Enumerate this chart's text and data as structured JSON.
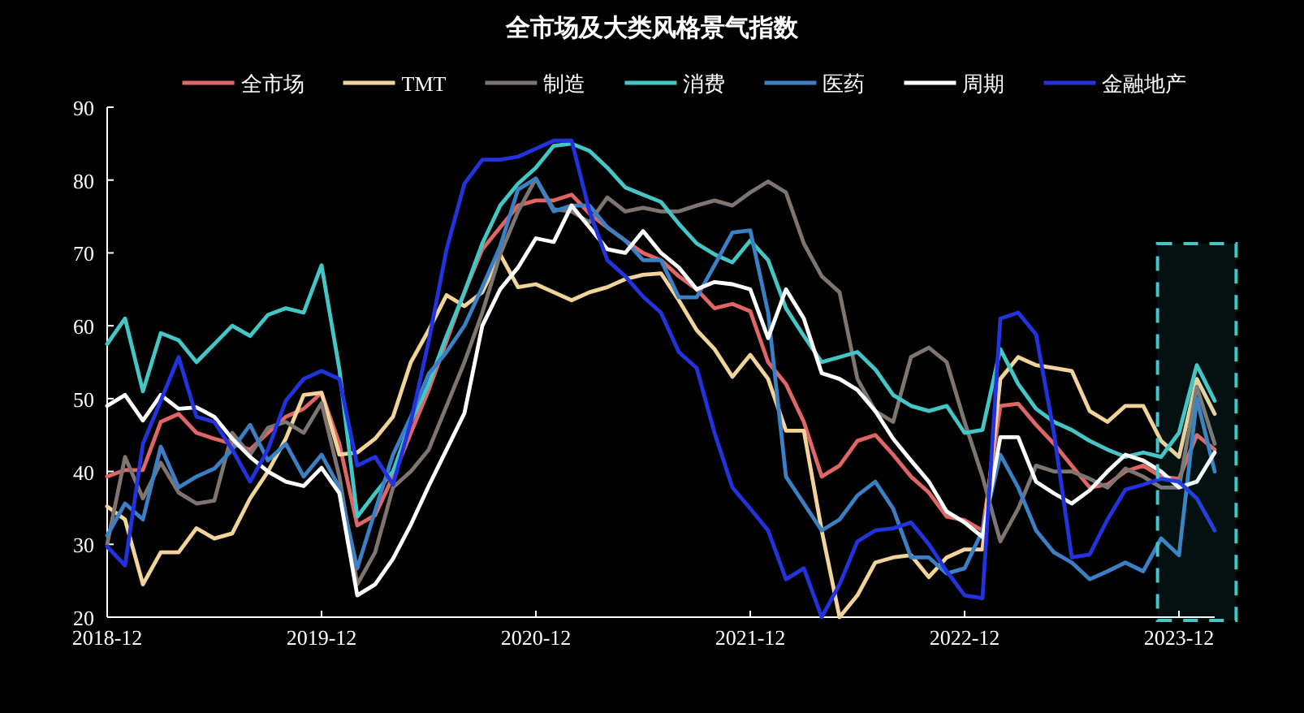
{
  "chart_data": {
    "type": "line",
    "title": "全市场及大类风格景气指数",
    "legend": "top",
    "marker": "none",
    "line_style": "solid",
    "x": [
      "2018-12",
      "2019-01",
      "2019-02",
      "2019-03",
      "2019-04",
      "2019-05",
      "2019-06",
      "2019-07",
      "2019-08",
      "2019-09",
      "2019-10",
      "2019-11",
      "2019-12",
      "2020-01",
      "2020-02",
      "2020-03",
      "2020-04",
      "2020-05",
      "2020-06",
      "2020-07",
      "2020-08",
      "2020-09",
      "2020-10",
      "2020-11",
      "2020-12",
      "2021-01",
      "2021-02",
      "2021-03",
      "2021-04",
      "2021-05",
      "2021-06",
      "2021-07",
      "2021-08",
      "2021-09",
      "2021-10",
      "2021-11",
      "2021-12",
      "2022-01",
      "2022-02",
      "2022-03",
      "2022-04",
      "2022-05",
      "2022-06",
      "2022-07",
      "2022-08",
      "2022-09",
      "2022-10",
      "2022-11",
      "2022-12",
      "2023-01",
      "2023-02",
      "2023-03",
      "2023-04",
      "2023-05",
      "2023-06",
      "2023-07",
      "2023-08",
      "2023-09",
      "2023-10",
      "2023-11",
      "2023-12",
      "2024-01",
      "2024-02"
    ],
    "xlim": [
      "2018-12",
      "2024-02"
    ],
    "xticks": [
      "2018-12",
      "2019-12",
      "2020-12",
      "2021-12",
      "2022-12",
      "2023-12"
    ],
    "bands": [
      {
        "axis": "x",
        "from": "2023-11",
        "to": "2024-02",
        "color": "#45c6c6"
      }
    ],
    "ylim": [
      20,
      90
    ],
    "yticks": [
      20,
      30,
      40,
      50,
      60,
      70,
      80,
      90
    ],
    "series": [
      {
        "name": "全市场",
        "color": "#e06666",
        "values": [
          39.3,
          40.2,
          40.2,
          46.8,
          47.9,
          45.3,
          44.5,
          43.8,
          43,
          45.3,
          47.5,
          48.6,
          50.8,
          43.8,
          32.6,
          34,
          39.3,
          45.3,
          51.2,
          57.9,
          64.6,
          70.5,
          73.5,
          76.5,
          77.2,
          77.2,
          78,
          75.4,
          73.5,
          71.7,
          70,
          69,
          66.8,
          65,
          62.4,
          63,
          62,
          55,
          52,
          46.8,
          39.3,
          40.8,
          44.2,
          45,
          42.3,
          39.3,
          37.1,
          33.8,
          33.3,
          31.9,
          49,
          49.3,
          46.4,
          43.8,
          40.8,
          37.8,
          38.2,
          40,
          40.8,
          39.3,
          39,
          45,
          43
        ]
      },
      {
        "name": "TMT",
        "color": "#f2d39a",
        "values": [
          35.2,
          33.4,
          24.5,
          28.9,
          28.9,
          32.2,
          30.8,
          31.5,
          36.3,
          40,
          44.5,
          50.5,
          50.8,
          42.3,
          42.6,
          44.5,
          47.5,
          55,
          59.4,
          64.2,
          62.7,
          64.6,
          69.8,
          65.3,
          65.7,
          64.6,
          63.5,
          64.6,
          65.3,
          66.4,
          67,
          67.2,
          63.5,
          59.4,
          56.8,
          53,
          56,
          52.7,
          45.6,
          45.6,
          31.9,
          20,
          23,
          27.5,
          28.2,
          28.5,
          25.5,
          28.2,
          29.3,
          29.3,
          52.7,
          55.7,
          54.6,
          54.2,
          53.8,
          48.3,
          46.8,
          49,
          49,
          44.2,
          42,
          52.7,
          47.9
        ]
      },
      {
        "name": "制造",
        "color": "#7f7570",
        "values": [
          30,
          42,
          36.3,
          41.2,
          37.1,
          35.6,
          36,
          45.3,
          42.3,
          46,
          46.8,
          45.3,
          49.4,
          39.3,
          24.5,
          28.9,
          37.8,
          40,
          43,
          49,
          55,
          61.8,
          69.8,
          75.7,
          80.2,
          76,
          75.7,
          74.2,
          77.6,
          75.7,
          76.2,
          75.7,
          75.7,
          76.5,
          77.2,
          76.5,
          78.3,
          79.8,
          78.3,
          71.3,
          66.8,
          64.6,
          52.7,
          48.3,
          46.8,
          55.7,
          57,
          55,
          46.8,
          39.3,
          30.4,
          34.9,
          40.8,
          40,
          40,
          39,
          37.8,
          40.4,
          39.3,
          37.8,
          37.8,
          51.6,
          43.8
        ]
      },
      {
        "name": "消费",
        "color": "#45c6c6",
        "values": [
          57.5,
          61,
          51,
          59,
          58,
          55,
          57.5,
          60,
          58.6,
          61.5,
          62.4,
          61.8,
          68.3,
          54,
          33.8,
          37,
          40,
          46.8,
          52,
          58.6,
          64.6,
          71.3,
          76.5,
          79.5,
          81.7,
          84.7,
          85,
          84,
          81.7,
          79,
          78,
          77,
          74,
          71.3,
          69.8,
          68.7,
          71.7,
          69,
          62.4,
          58.6,
          55,
          55.7,
          56.4,
          54,
          50.5,
          49,
          48.3,
          49,
          45.3,
          45.7,
          56.8,
          52,
          48.6,
          46.8,
          45.7,
          44.2,
          43,
          42,
          42.6,
          42,
          45.3,
          54.6,
          49.7
        ]
      },
      {
        "name": "医药",
        "color": "#3b7fc4",
        "values": [
          31.2,
          35.6,
          33.4,
          43.4,
          37.8,
          39.3,
          40.4,
          43,
          46.4,
          41.5,
          43.8,
          39.3,
          42.3,
          37.8,
          26.7,
          34.6,
          42.3,
          47.5,
          53.4,
          56.4,
          60,
          65.3,
          70.9,
          78.7,
          80.2,
          75.7,
          76.5,
          76.5,
          73.5,
          71.7,
          69,
          69,
          63.9,
          63.9,
          68.3,
          72.8,
          73.1,
          61.8,
          39.3,
          35.6,
          31.9,
          33.4,
          36.7,
          38.6,
          34.9,
          28.2,
          28.2,
          26,
          26.7,
          31.9,
          42.3,
          37.8,
          31.9,
          28.9,
          27.5,
          25.2,
          26.3,
          27.5,
          26.3,
          30.8,
          28.5,
          50,
          40
        ]
      },
      {
        "name": "周期",
        "color": "#ffffff",
        "values": [
          49,
          50.5,
          47,
          50.5,
          48.6,
          48.8,
          47.5,
          44.5,
          42,
          40,
          38.6,
          38,
          40.5,
          37,
          23,
          24.5,
          28,
          32.7,
          38,
          43,
          48,
          60,
          65,
          68,
          72,
          71.5,
          76.5,
          73.5,
          70.5,
          70,
          73,
          70,
          68,
          65,
          66,
          65.7,
          65,
          58.3,
          65,
          61,
          53.5,
          52.7,
          51.2,
          48.3,
          44.5,
          41.5,
          38.6,
          34.5,
          33,
          31,
          44.7,
          44.7,
          38.6,
          37,
          35.6,
          37.4,
          40,
          42.3,
          41.5,
          40,
          37.8,
          38.6,
          42.6
        ]
      },
      {
        "name": "金融地产",
        "color": "#2233dd",
        "values": [
          29.7,
          27.1,
          43.8,
          49.7,
          55.7,
          47.5,
          46.8,
          43,
          38.6,
          43,
          49.7,
          52.7,
          53.8,
          52.7,
          40.8,
          42,
          38.2,
          46.8,
          57.9,
          70.5,
          79.5,
          82.8,
          82.8,
          83.2,
          84.3,
          85.4,
          85.4,
          75.7,
          69,
          66.8,
          64,
          61.8,
          56.4,
          54.2,
          45.3,
          37.8,
          34.9,
          31.9,
          25.2,
          26.7,
          20,
          24.5,
          30.4,
          31.9,
          32.2,
          33,
          30,
          26.3,
          23,
          22.6,
          61,
          61.8,
          58.8,
          45.3,
          28.2,
          28.6,
          33.4,
          37.5,
          38.2,
          39,
          38.6,
          36.3,
          31.9
        ]
      }
    ]
  }
}
